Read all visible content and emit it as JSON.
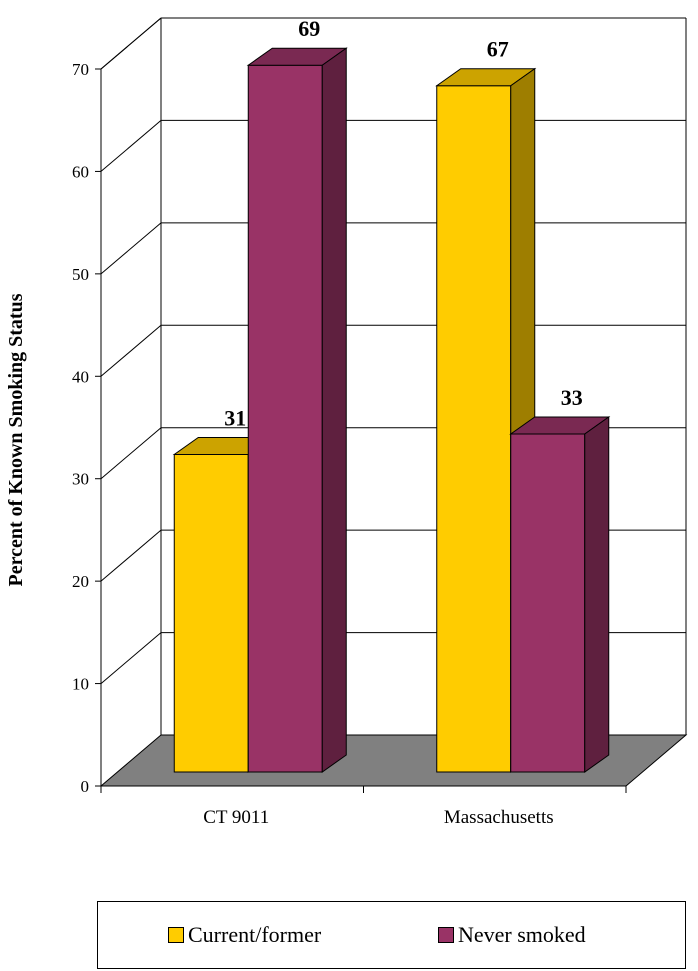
{
  "chart_data": {
    "type": "bar",
    "title": "",
    "xlabel": "",
    "ylabel": "Percent of Known Smoking Status",
    "categories": [
      "CT 9011",
      "Massachusetts"
    ],
    "series": [
      {
        "name": "Current/former",
        "values": [
          31,
          67
        ],
        "color": "#FFCC00"
      },
      {
        "name": "Never smoked",
        "values": [
          69,
          33
        ],
        "color": "#993366"
      }
    ],
    "ylim": [
      0,
      70
    ],
    "yticks": [
      "0",
      "10",
      "20",
      "30",
      "40",
      "50",
      "60",
      "70"
    ],
    "data_labels": [
      "31",
      "69",
      "67",
      "33"
    ],
    "grid": true,
    "three_d": true,
    "legend_position": "bottom"
  }
}
